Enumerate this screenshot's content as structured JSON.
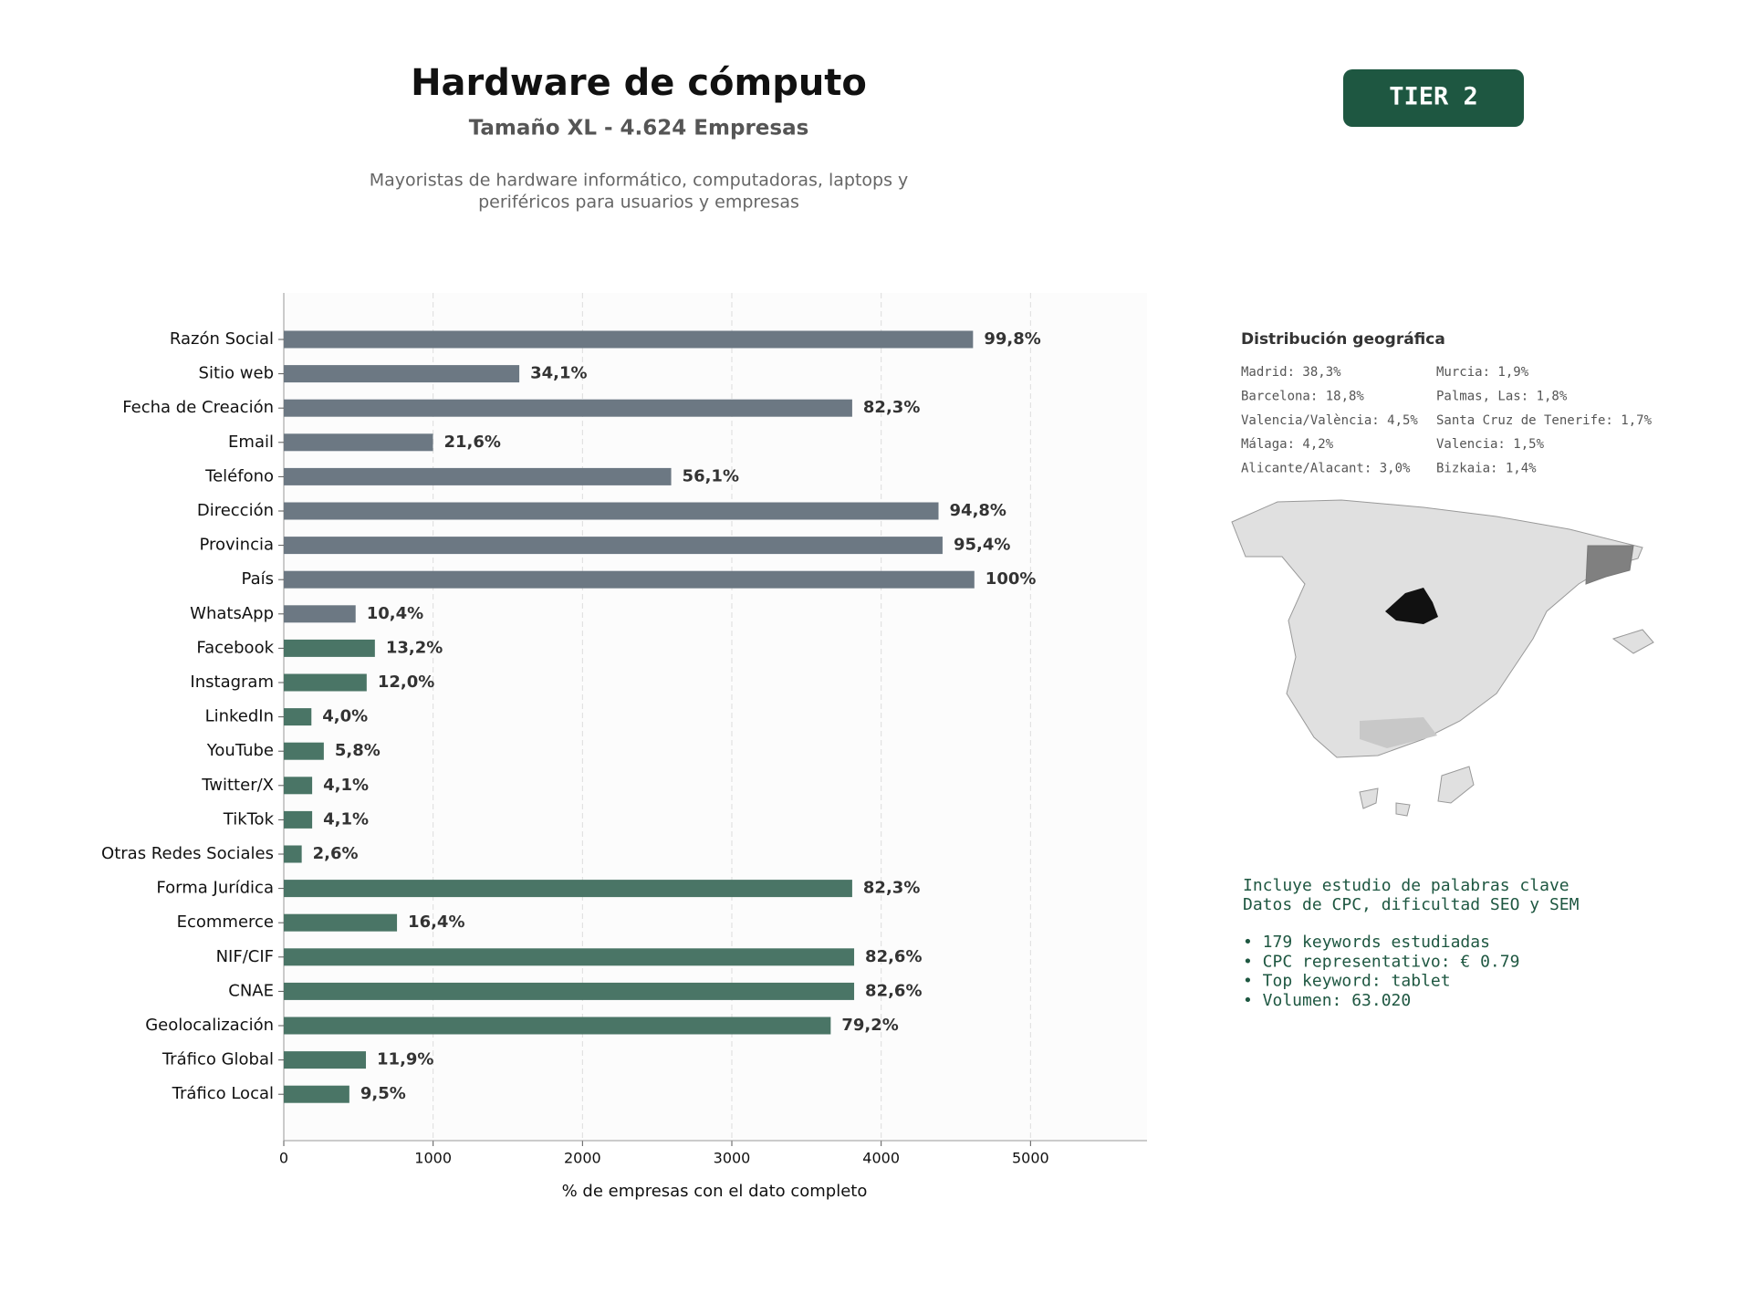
{
  "chart_data": {
    "type": "bar",
    "orientation": "horizontal",
    "title": "Hardware de cómputo",
    "subtitle": "Tamaño XL - 4.624 Empresas",
    "description": [
      "Mayoristas de hardware informático, computadoras, laptops y",
      "periféricos para usuarios y empresas"
    ],
    "badge": "TIER 2",
    "x_label": "% de empresas con el dato completo",
    "categories": [
      "Razón Social",
      "Sitio web",
      "Fecha de Creación",
      "Email",
      "Teléfono",
      "Dirección",
      "Provincia",
      "País",
      "WhatsApp",
      "Facebook",
      "Instagram",
      "LinkedIn",
      "YouTube",
      "Twitter/X",
      "TikTok",
      "Otras Redes Sociales",
      "Forma Jurídica",
      "Ecommerce",
      "NIF/CIF",
      "CNAE",
      "Geolocalización",
      "Tráfico Global",
      "Tráfico Local"
    ],
    "values": [
      4615,
      1577,
      3806,
      999,
      2594,
      4384,
      4411,
      4624,
      481,
      610,
      555,
      185,
      268,
      190,
      190,
      120,
      3806,
      758,
      3819,
      3819,
      3662,
      550,
      439
    ],
    "value_labels": [
      "99,8%",
      "34,1%",
      "82,3%",
      "21,6%",
      "56,1%",
      "94,8%",
      "95,4%",
      "100%",
      "10,4%",
      "13,2%",
      "12,0%",
      "4,0%",
      "5,8%",
      "4,1%",
      "4,1%",
      "2,6%",
      "82,3%",
      "16,4%",
      "82,6%",
      "82,6%",
      "79,2%",
      "11,9%",
      "9,5%"
    ],
    "colors": [
      "#6c7883",
      "#6c7883",
      "#6c7883",
      "#6c7883",
      "#6c7883",
      "#6c7883",
      "#6c7883",
      "#6c7883",
      "#6c7883",
      "#4a7566",
      "#4a7566",
      "#4a7566",
      "#4a7566",
      "#4a7566",
      "#4a7566",
      "#4a7566",
      "#4a7566",
      "#4a7566",
      "#4a7566",
      "#4a7566",
      "#4a7566",
      "#4a7566",
      "#4a7566"
    ],
    "xlim": [
      0,
      5780
    ],
    "xticks": [
      0,
      1000,
      2000,
      3000,
      4000,
      5000
    ],
    "grid": true,
    "geo_title": "Distribución geográfica",
    "geo_list": [
      "Madrid: 38,3%",
      "Barcelona: 18,8%",
      "Valencia/València: 4,5%",
      "Málaga: 4,2%",
      "Alicante/Alacant: 3,0%",
      "Murcia: 1,9%",
      "Palmas, Las: 1,8%",
      "Santa Cruz de Tenerife: 1,7%",
      "Valencia: 1,5%",
      "Bizkaia: 1,4%"
    ],
    "keywords_intro": [
      "Incluye estudio de palabras clave",
      "Datos de CPC, dificultad SEO y SEM"
    ],
    "keywords_bullets": [
      "• 179 keywords estudiadas",
      "• CPC representativo: € 0.79",
      "• Top keyword: tablet",
      "• Volumen: 63.020"
    ]
  }
}
